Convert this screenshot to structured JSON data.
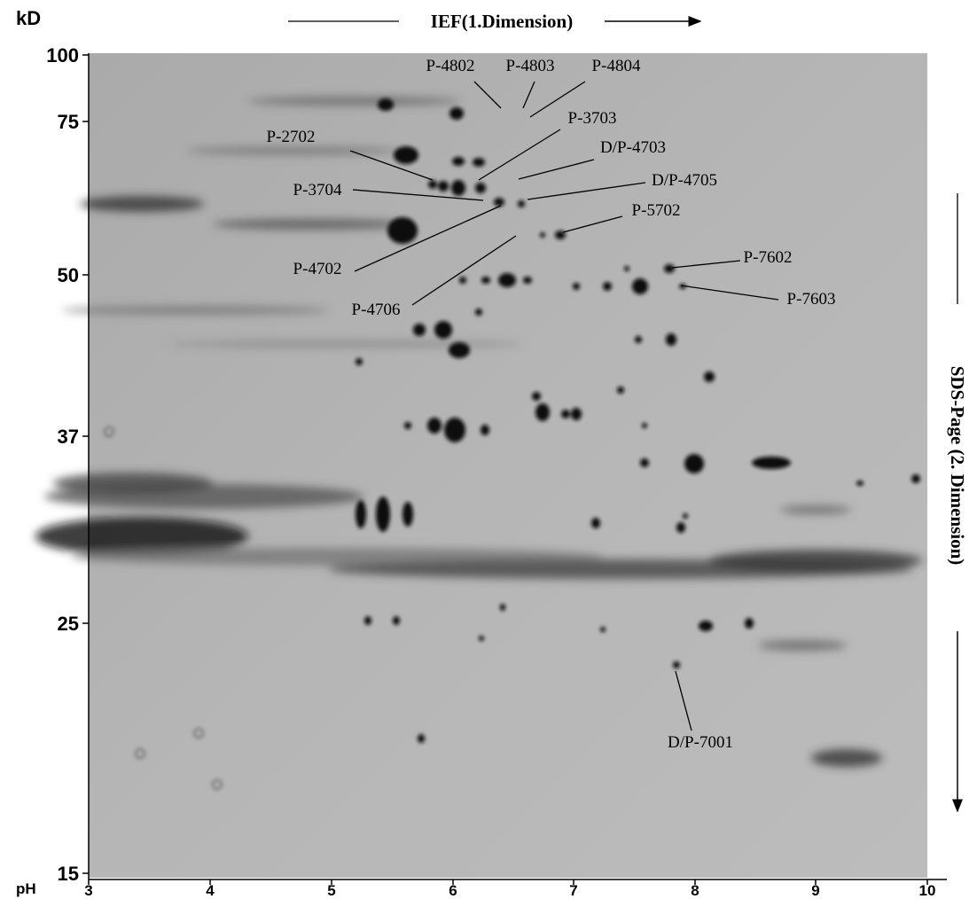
{
  "header": {
    "y_unit": "kD",
    "x_title": "IEF(1.Dimension)",
    "y_title": "SDS-Page (2. Dimension)",
    "x_unit": "pH"
  },
  "y_ticks": [
    100,
    75,
    50,
    37,
    25,
    15
  ],
  "x_ticks": [
    3,
    4,
    5,
    6,
    7,
    8,
    9,
    10
  ],
  "spot_labels": [
    "P-4802",
    "P-4803",
    "P-4804",
    "P-3703",
    "P-2702",
    "D/P-4703",
    "P-3704",
    "D/P-4705",
    "P-5702",
    "P-4702",
    "P-4706",
    "P-7602",
    "P-7603",
    "D/P-7001"
  ]
}
